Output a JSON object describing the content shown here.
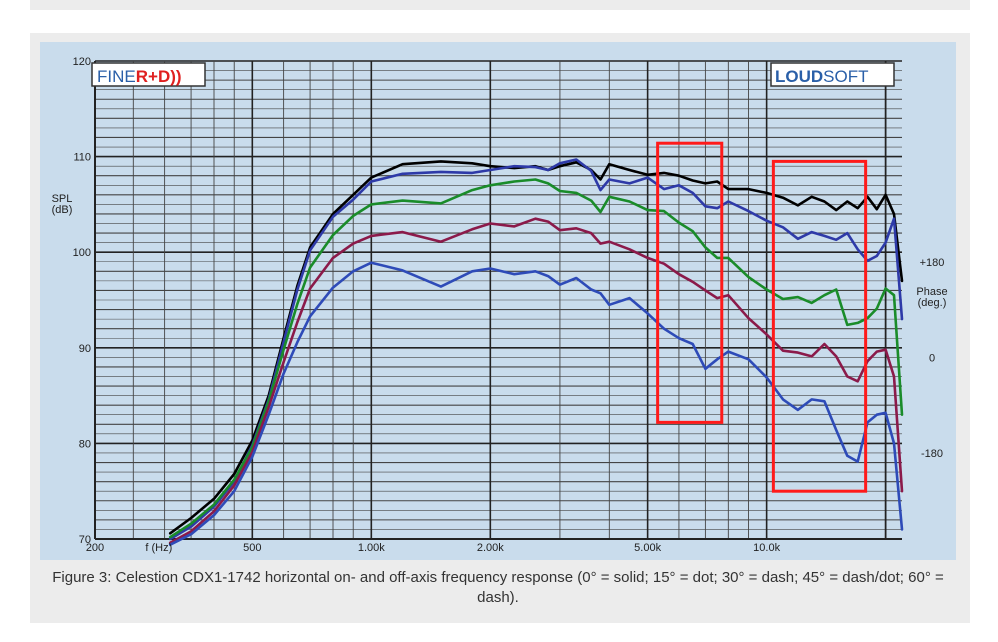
{
  "caption": "Figure 3: Celestion CDX1-1742 horizontal on- and off-axis frequency response (0° = solid; 15° = dot; 30° = dash; 45° = dash/dot; 60° = dash).",
  "logos": {
    "left_part1": "FINE",
    "left_part2": "R+D))",
    "right_part1": "LOUD",
    "right_part2": "SOFT"
  },
  "colors": {
    "plot_bg": "#c9dcec",
    "grid_major": "#333333",
    "grid_minor": "#555555",
    "highlight_box": "#ff1a1a",
    "logo_blue": "#2a5fa8",
    "logo_red": "#e02020"
  },
  "chart_data": {
    "type": "line",
    "title": "",
    "xlabel": "f (Hz)",
    "ylabel": "SPL\n(dB)",
    "y2label": "Phase\n(deg.)",
    "x_scale": "log",
    "xlim": [
      200,
      22000
    ],
    "ylim": [
      70,
      120
    ],
    "x_tick_labels": [
      {
        "value": 200,
        "label": "200"
      },
      {
        "value": 500,
        "label": "500"
      },
      {
        "value": 1000,
        "label": "1.00k"
      },
      {
        "value": 2000,
        "label": "2.00k"
      },
      {
        "value": 5000,
        "label": "5.00k"
      },
      {
        "value": 10000,
        "label": "10.0k"
      }
    ],
    "y_tick_labels": [
      {
        "value": 70,
        "label": "70"
      },
      {
        "value": 80,
        "label": "80"
      },
      {
        "value": 90,
        "label": "90"
      },
      {
        "value": 100,
        "label": "100"
      },
      {
        "value": 110,
        "label": "110"
      },
      {
        "value": 120,
        "label": "120"
      }
    ],
    "y2_tick_labels": [
      {
        "value": 99,
        "label": "+180"
      },
      {
        "value": 89,
        "label": "0"
      },
      {
        "value": 79,
        "label": "-180"
      }
    ],
    "grid": true,
    "series": [
      {
        "angle": "0°",
        "color": "#000000",
        "x": [
          310,
          350,
          400,
          450,
          500,
          550,
          600,
          650,
          700,
          800,
          900,
          1000,
          1200,
          1500,
          1800,
          2000,
          2300,
          2600,
          2800,
          3000,
          3300,
          3600,
          3800,
          4000,
          4500,
          5000,
          5500,
          6000,
          6500,
          7000,
          7500,
          8000,
          9000,
          10000,
          11000,
          12000,
          13000,
          14000,
          15000,
          16000,
          17000,
          18000,
          19000,
          20000,
          21000,
          22000
        ],
        "y": [
          70.6,
          72.2,
          74.2,
          76.8,
          80.3,
          85,
          91,
          96.5,
          100.5,
          104,
          106,
          107.8,
          109.2,
          109.5,
          109.3,
          109,
          108.8,
          109,
          108.6,
          109,
          109.4,
          108.6,
          107.6,
          109.2,
          108.6,
          108.1,
          108.3,
          108,
          107.5,
          107.2,
          107.4,
          106.6,
          106.6,
          106.2,
          105.7,
          104.9,
          105.8,
          105.3,
          104.4,
          105.3,
          104.6,
          105.8,
          104.5,
          106,
          104,
          97
        ]
      },
      {
        "angle": "15°",
        "color": "#2e3aa8",
        "x": [
          310,
          350,
          400,
          450,
          500,
          550,
          600,
          650,
          700,
          800,
          900,
          1000,
          1200,
          1500,
          1800,
          2000,
          2300,
          2600,
          2800,
          3000,
          3300,
          3600,
          3800,
          4000,
          4500,
          5000,
          5500,
          6000,
          6500,
          7000,
          7500,
          8000,
          9000,
          10000,
          11000,
          12000,
          13000,
          14000,
          15000,
          16000,
          17000,
          18000,
          19000,
          20000,
          21000,
          22000
        ],
        "y": [
          70,
          71.3,
          73.4,
          76,
          79.8,
          84.6,
          90.6,
          96.1,
          100.2,
          103.7,
          105.5,
          107.4,
          108.2,
          108.4,
          108.3,
          108.6,
          109,
          108.9,
          108.6,
          109.3,
          109.7,
          108.5,
          106.5,
          107.6,
          107.2,
          107.8,
          106.6,
          107,
          106.2,
          104.8,
          104.6,
          105.3,
          104.3,
          103.3,
          102.6,
          101.4,
          102.1,
          101.7,
          101.3,
          102,
          100.3,
          99.1,
          99.6,
          101,
          103.5,
          93
        ]
      },
      {
        "angle": "30°",
        "color": "#1a8c2a",
        "x": [
          310,
          350,
          400,
          450,
          500,
          550,
          600,
          650,
          700,
          800,
          900,
          1000,
          1200,
          1500,
          1800,
          2000,
          2300,
          2600,
          2800,
          3000,
          3300,
          3600,
          3800,
          4000,
          4500,
          5000,
          5500,
          6000,
          6500,
          7000,
          7500,
          8000,
          9000,
          10000,
          11000,
          12000,
          13000,
          14000,
          15000,
          16000,
          17000,
          18000,
          19000,
          20000,
          21000,
          22000
        ],
        "y": [
          70.2,
          71.6,
          73.6,
          76.2,
          79.6,
          84.4,
          89.8,
          94.6,
          98.4,
          101.8,
          103.8,
          105,
          105.4,
          105.1,
          106.5,
          107,
          107.4,
          107.6,
          107.2,
          106.4,
          106.2,
          105.4,
          104.2,
          105.8,
          105.3,
          104.4,
          104.3,
          103.1,
          102.2,
          100.5,
          99.4,
          99.4,
          97.4,
          96.1,
          95.1,
          95.3,
          94.7,
          95.5,
          96.1,
          92.4,
          92.6,
          93.1,
          94.1,
          96.2,
          95.5,
          83
        ]
      },
      {
        "angle": "45°",
        "color": "#8b1a4a",
        "x": [
          310,
          350,
          400,
          450,
          500,
          550,
          600,
          650,
          700,
          800,
          900,
          1000,
          1200,
          1500,
          1800,
          2000,
          2300,
          2600,
          2800,
          3000,
          3300,
          3600,
          3800,
          4000,
          4500,
          5000,
          5500,
          6000,
          6500,
          7000,
          7500,
          8000,
          9000,
          10000,
          11000,
          12000,
          13000,
          14000,
          15000,
          16000,
          17000,
          18000,
          19000,
          20000,
          21000,
          22000
        ],
        "y": [
          69.6,
          70.8,
          72.9,
          75.6,
          79.1,
          83.8,
          88.5,
          92.7,
          96.2,
          99.4,
          100.9,
          101.7,
          102.1,
          101.1,
          102.4,
          103,
          102.7,
          103.5,
          103.2,
          102.3,
          102.5,
          102,
          100.9,
          101.1,
          100.3,
          99.4,
          98.8,
          97.7,
          96.9,
          96,
          95.2,
          95.5,
          93.1,
          91.4,
          89.7,
          89.5,
          89.1,
          90.4,
          89.1,
          87,
          86.5,
          88.6,
          89.6,
          89.8,
          87,
          75
        ]
      },
      {
        "angle": "60°",
        "color": "#2e4bb8",
        "x": [
          310,
          350,
          400,
          450,
          500,
          550,
          600,
          650,
          700,
          800,
          900,
          1000,
          1200,
          1500,
          1800,
          2000,
          2300,
          2600,
          2800,
          3000,
          3300,
          3600,
          3800,
          4000,
          4500,
          5000,
          5500,
          6000,
          6500,
          7000,
          7500,
          8000,
          9000,
          10000,
          11000,
          12000,
          13000,
          14000,
          15000,
          16000,
          17000,
          18000,
          19000,
          20000,
          21000,
          22000
        ],
        "y": [
          69.4,
          70.5,
          72.5,
          75,
          78.6,
          83,
          87.3,
          90.6,
          93.3,
          96.3,
          98,
          98.9,
          98.1,
          96.4,
          98,
          98.3,
          97.7,
          98,
          97.5,
          96.6,
          97.3,
          96.1,
          95.7,
          94.5,
          95.2,
          93.6,
          92,
          91,
          90.4,
          87.8,
          88.8,
          89.6,
          88.8,
          86.9,
          84.6,
          83.5,
          84.6,
          84.4,
          81.4,
          78.7,
          78.1,
          82.2,
          83,
          83.2,
          80,
          71
        ]
      }
    ],
    "highlight_boxes": [
      {
        "x_range": [
          5300,
          7700
        ],
        "y_range": [
          82.2,
          111.4
        ]
      },
      {
        "x_range": [
          10400,
          17800
        ],
        "y_range": [
          75,
          109.5
        ]
      }
    ]
  }
}
